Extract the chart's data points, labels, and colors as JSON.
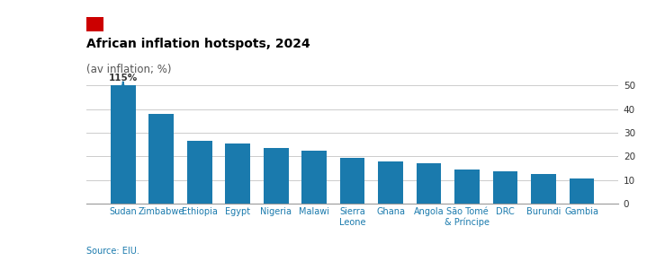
{
  "title": "African inflation hotspots, 2024",
  "subtitle": "(av inflation; %)",
  "source": "Source: EIU.",
  "categories": [
    "Sudan",
    "Zimbabwe",
    "Ethiopia",
    "Egypt",
    "Nigeria",
    "Malawi",
    "Sierra\nLeone",
    "Ghana",
    "Angola",
    "São Tomé\n& Príncipe",
    "DRC",
    "Burundi",
    "Gambia"
  ],
  "values": [
    115,
    38.0,
    26.5,
    25.5,
    23.5,
    22.5,
    19.5,
    18.0,
    17.0,
    14.5,
    13.5,
    12.5,
    10.5
  ],
  "display_values": [
    50,
    38.0,
    26.5,
    25.5,
    23.5,
    22.5,
    19.5,
    18.0,
    17.0,
    14.5,
    13.5,
    12.5,
    10.5
  ],
  "bar_color": "#1a7aad",
  "red_rect_color": "#cc0000",
  "title_color": "#000000",
  "source_color": "#1a7aad",
  "axis_label_color": "#1a7aad",
  "ytick_color": "#333333",
  "grid_color": "#cccccc",
  "bottom_spine_color": "#999999",
  "ylim": [
    0,
    53
  ],
  "yticks": [
    0,
    10,
    20,
    30,
    40,
    50
  ],
  "background_color": "#ffffff",
  "sudan_label": "115%"
}
